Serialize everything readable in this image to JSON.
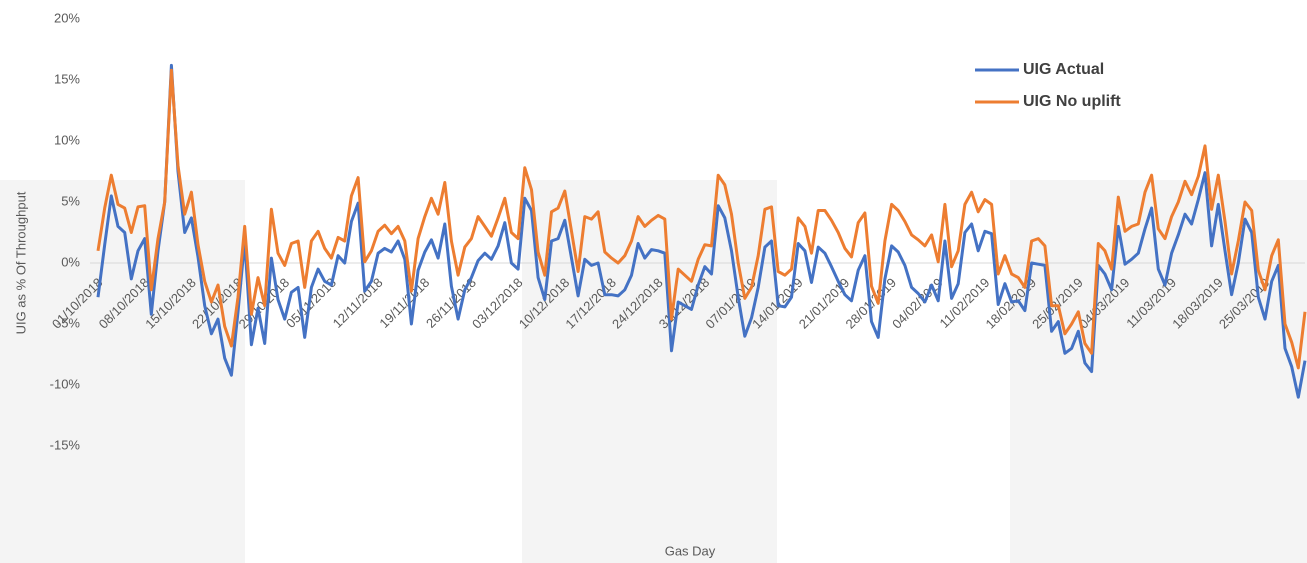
{
  "chart_data": {
    "type": "line",
    "y_label": "UIG as % Of Throughput",
    "x_label": "Gas Day",
    "categories": [
      "01/10/2018",
      null,
      null,
      null,
      null,
      null,
      null,
      "08/10/2018",
      null,
      null,
      null,
      null,
      null,
      null,
      "15/10/2018",
      null,
      null,
      null,
      null,
      null,
      null,
      "22/10/2018",
      null,
      null,
      null,
      null,
      null,
      null,
      "29/10/2018",
      null,
      null,
      null,
      null,
      null,
      null,
      "05/11/2018",
      null,
      null,
      null,
      null,
      null,
      null,
      "12/11/2018",
      null,
      null,
      null,
      null,
      null,
      null,
      "19/11/2018",
      null,
      null,
      null,
      null,
      null,
      null,
      "26/11/2018",
      null,
      null,
      null,
      null,
      null,
      null,
      "03/12/2018",
      null,
      null,
      null,
      null,
      null,
      null,
      "10/12/2018",
      null,
      null,
      null,
      null,
      null,
      null,
      "17/12/2018",
      null,
      null,
      null,
      null,
      null,
      null,
      "24/12/2018",
      null,
      null,
      null,
      null,
      null,
      null,
      "31/12/2018",
      null,
      null,
      null,
      null,
      null,
      null,
      "07/01/2019",
      null,
      null,
      null,
      null,
      null,
      null,
      "14/01/2019",
      null,
      null,
      null,
      null,
      null,
      null,
      "21/01/2019",
      null,
      null,
      null,
      null,
      null,
      null,
      "28/01/2019",
      null,
      null,
      null,
      null,
      null,
      null,
      "04/02/2019",
      null,
      null,
      null,
      null,
      null,
      null,
      "11/02/2019",
      null,
      null,
      null,
      null,
      null,
      null,
      "18/02/2019",
      null,
      null,
      null,
      null,
      null,
      null,
      "25/02/2019",
      null,
      null,
      null,
      null,
      null,
      null,
      "04/03/2019",
      null,
      null,
      null,
      null,
      null,
      null,
      "11/03/2019",
      null,
      null,
      null,
      null,
      null,
      null,
      "18/03/2019",
      null,
      null,
      null,
      null,
      null,
      null,
      "25/03/2019",
      null,
      null,
      null,
      null,
      null,
      null
    ],
    "series": [
      {
        "name": "UIG Actual",
        "color": "#4472c4",
        "values": [
          -2.8,
          1.5,
          5.5,
          3.0,
          2.5,
          -1.3,
          1.0,
          2.0,
          -4.2,
          1.0,
          5.0,
          16.2,
          7.5,
          2.5,
          3.7,
          0.5,
          -3.5,
          -5.8,
          -4.6,
          -7.8,
          -9.2,
          -4.0,
          1.8,
          -6.7,
          -3.7,
          -6.6,
          0.4,
          -3.0,
          -4.6,
          -2.4,
          -2.0,
          -6.1,
          -2.0,
          -0.5,
          -1.5,
          -1.8,
          0.6,
          0.0,
          3.4,
          4.9,
          -2.3,
          -1.5,
          0.8,
          1.2,
          0.9,
          1.8,
          0.3,
          -5.0,
          -0.6,
          0.9,
          1.9,
          0.4,
          3.2,
          -1.9,
          -4.6,
          -2.2,
          -1.2,
          0.2,
          0.8,
          0.3,
          1.4,
          3.3,
          0.0,
          -0.5,
          5.3,
          4.3,
          -1.2,
          -3.0,
          1.8,
          2.0,
          3.5,
          0.4,
          -2.7,
          0.3,
          -0.2,
          0.0,
          -2.6,
          -2.6,
          -2.7,
          -2.2,
          -1.0,
          1.6,
          0.4,
          1.1,
          1.0,
          0.8,
          -7.2,
          -3.2,
          -3.5,
          -3.8,
          -1.8,
          -0.3,
          -0.9,
          4.7,
          3.7,
          1.0,
          -2.8,
          -6.0,
          -4.5,
          -2.0,
          1.3,
          1.8,
          -3.5,
          -3.6,
          -2.8,
          1.6,
          1.0,
          -1.6,
          1.3,
          0.8,
          -0.3,
          -1.5,
          -2.6,
          -3.1,
          -0.6,
          0.6,
          -4.8,
          -6.1,
          -1.3,
          1.4,
          0.9,
          -0.2,
          -2.0,
          -2.5,
          -3.2,
          -1.8,
          -3.1,
          1.8,
          -2.9,
          -1.7,
          2.5,
          3.2,
          1.0,
          2.6,
          2.4,
          -3.4,
          -1.7,
          -3.2,
          -3.1,
          -3.9,
          0.0,
          -0.1,
          -0.2,
          -5.6,
          -4.8,
          -7.4,
          -7.0,
          -5.6,
          -8.2,
          -8.9,
          -0.2,
          -0.9,
          -2.2,
          3.0,
          -0.1,
          0.3,
          0.8,
          2.8,
          4.5,
          -0.5,
          -1.8,
          0.8,
          2.3,
          4.0,
          3.2,
          5.2,
          7.4,
          1.4,
          4.8,
          1.0,
          -2.6,
          0.0,
          3.6,
          2.5,
          -2.8,
          -4.6,
          -1.5,
          -0.2,
          -7.0,
          -8.5,
          -11.0,
          -8.0
        ]
      },
      {
        "name": "UIG No uplift",
        "color": "#ed7d31",
        "values": [
          1.0,
          4.5,
          7.2,
          4.8,
          4.5,
          2.5,
          4.6,
          4.7,
          -2.2,
          2.0,
          5.0,
          15.8,
          8.0,
          4.0,
          5.8,
          1.5,
          -1.5,
          -3.2,
          -1.8,
          -5.2,
          -6.8,
          -2.8,
          3.0,
          -4.2,
          -1.2,
          -3.5,
          4.4,
          0.8,
          -0.2,
          1.6,
          1.8,
          -2.0,
          1.8,
          2.6,
          1.2,
          0.4,
          2.1,
          1.8,
          5.5,
          7.0,
          0.1,
          1.0,
          2.6,
          3.1,
          2.4,
          3.0,
          1.8,
          -2.3,
          2.0,
          3.8,
          5.3,
          4.0,
          6.6,
          1.8,
          -1.0,
          1.3,
          2.0,
          3.8,
          3.0,
          2.2,
          3.7,
          5.3,
          2.5,
          2.0,
          7.8,
          6.0,
          0.9,
          -1.0,
          4.2,
          4.5,
          5.9,
          2.6,
          -0.7,
          3.8,
          3.6,
          4.2,
          0.9,
          0.4,
          0.0,
          0.6,
          1.8,
          3.8,
          3.0,
          3.5,
          3.9,
          3.6,
          -4.6,
          -0.5,
          -1.0,
          -1.5,
          0.3,
          1.5,
          1.4,
          7.2,
          6.4,
          4.0,
          0.0,
          -2.9,
          -2.0,
          0.6,
          4.4,
          4.6,
          -0.7,
          -1.0,
          -0.5,
          3.7,
          3.0,
          0.8,
          4.3,
          4.3,
          3.5,
          2.5,
          1.2,
          0.5,
          3.3,
          4.1,
          -1.9,
          -3.3,
          1.8,
          4.8,
          4.3,
          3.4,
          2.3,
          1.9,
          1.4,
          2.3,
          0.1,
          4.8,
          -0.3,
          1.0,
          4.8,
          5.8,
          4.2,
          5.2,
          4.8,
          -0.9,
          0.6,
          -0.9,
          -1.2,
          -2.0,
          1.8,
          2.0,
          1.4,
          -3.5,
          -3.5,
          -5.8,
          -5.0,
          -4.0,
          -6.6,
          -7.4,
          1.6,
          1.0,
          -0.5,
          5.4,
          2.6,
          3.0,
          3.2,
          5.8,
          7.2,
          2.8,
          2.0,
          3.8,
          5.0,
          6.7,
          5.6,
          7.1,
          9.6,
          4.4,
          7.2,
          3.4,
          -0.9,
          1.8,
          5.0,
          4.3,
          -0.6,
          -2.2,
          0.6,
          1.9,
          -5.0,
          -6.5,
          -8.6,
          -4.0
        ]
      }
    ],
    "ylim": [
      -15,
      20
    ],
    "yticks": [
      {
        "value": -15,
        "label": "-15%"
      },
      {
        "value": -10,
        "label": "-10%"
      },
      {
        "value": -5,
        "label": "-5%"
      },
      {
        "value": 0,
        "label": "0%"
      },
      {
        "value": 5,
        "label": "5%"
      },
      {
        "value": 10,
        "label": "10%"
      },
      {
        "value": 15,
        "label": "15%"
      },
      {
        "value": 20,
        "label": "20%"
      }
    ],
    "grid": false,
    "legend": "top-right"
  }
}
